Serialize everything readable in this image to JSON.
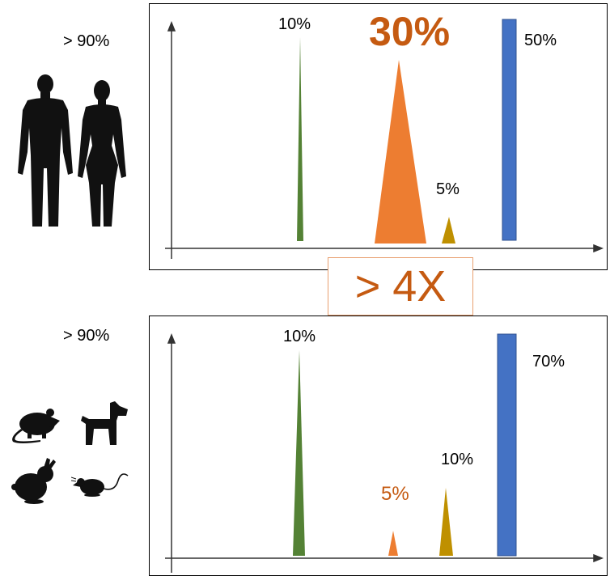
{
  "top_panel": {
    "species_percent": "> 90%",
    "peaks": [
      {
        "label": "10%",
        "color": "#548235",
        "shape": "spike",
        "level": 10
      },
      {
        "label": "30%",
        "color": "#ed7d31",
        "shape": "triangle",
        "level": 30,
        "highlight": true,
        "label_color": "#c55a11"
      },
      {
        "label": "5%",
        "color": "#bf9000",
        "shape": "triangle",
        "level": 5
      },
      {
        "label": "50%",
        "color": "#4472c4",
        "shape": "bar",
        "level": 50
      }
    ]
  },
  "bottom_panel": {
    "species_percent": "> 90%",
    "peaks": [
      {
        "label": "10%",
        "color": "#548235",
        "shape": "spike",
        "level": 10
      },
      {
        "label": "5%",
        "color": "#ed7d31",
        "shape": "triangle",
        "level": 5,
        "label_color": "#c55a11"
      },
      {
        "label": "10%",
        "color": "#bf9000",
        "shape": "triangle",
        "level": 10
      },
      {
        "label": "70%",
        "color": "#4472c4",
        "shape": "bar",
        "level": 70
      }
    ]
  },
  "ratio": "> 4X",
  "icons": [
    "man-icon",
    "woman-icon",
    "rat-icon",
    "dog-icon",
    "rabbit-icon",
    "mouse-icon"
  ]
}
